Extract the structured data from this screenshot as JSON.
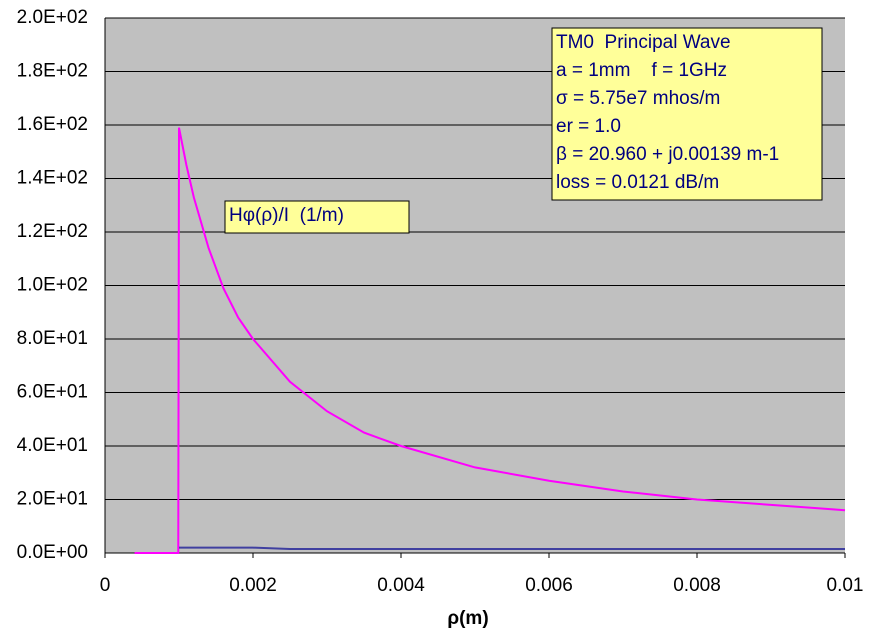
{
  "chart_data": {
    "type": "line",
    "x_label": "ρ(m)",
    "x": [
      0.0004,
      0.00099,
      0.001,
      0.0011,
      0.0012,
      0.0014,
      0.0016,
      0.0018,
      0.002,
      0.0025,
      0.003,
      0.0035,
      0.004,
      0.005,
      0.006,
      0.007,
      0.008,
      0.009,
      0.01
    ],
    "series": [
      {
        "color": "#ff00ff",
        "values": [
          0,
          0,
          159,
          145,
          133,
          114,
          99,
          88,
          80,
          64,
          53,
          45,
          40,
          32,
          27,
          23,
          20,
          18,
          16
        ]
      },
      {
        "color": "#4040a0",
        "values": [
          null,
          null,
          2,
          2,
          2,
          2,
          2,
          2,
          2,
          1.5,
          1.5,
          1.5,
          1.5,
          1.5,
          1.5,
          1.5,
          1.5,
          1.5,
          1.5
        ]
      }
    ],
    "xlim": [
      0,
      0.01
    ],
    "xticks": [
      0,
      0.002,
      0.004,
      0.006,
      0.008,
      0.01
    ],
    "ylim": [
      0,
      200
    ],
    "yticks": [
      {
        "value": 0,
        "label": "0.0E+00"
      },
      {
        "value": 20,
        "label": "2.0E+01"
      },
      {
        "value": 40,
        "label": "4.0E+01"
      },
      {
        "value": 60,
        "label": "6.0E+01"
      },
      {
        "value": 80,
        "label": "8.0E+01"
      },
      {
        "value": 100,
        "label": "1.0E+02"
      },
      {
        "value": 120,
        "label": "1.2E+02"
      },
      {
        "value": 140,
        "label": "1.4E+02"
      },
      {
        "value": 160,
        "label": "1.6E+02"
      },
      {
        "value": 180,
        "label": "1.8E+02"
      },
      {
        "value": 200,
        "label": "2.0E+02"
      }
    ],
    "grid": true,
    "background": "#c0c0c0",
    "annotations": [
      {
        "lines": [
          "TM0  Principal Wave",
          "a = 1mm    f = 1GHz",
          "σ = 5.75e7 mhos/m",
          "er = 1.0",
          "β = 20.960 + j0.00139 m-1",
          "loss = 0.0121 dB/m"
        ]
      },
      {
        "lines": [
          "Hφ(ρ)/I  (1/m)"
        ]
      }
    ]
  }
}
